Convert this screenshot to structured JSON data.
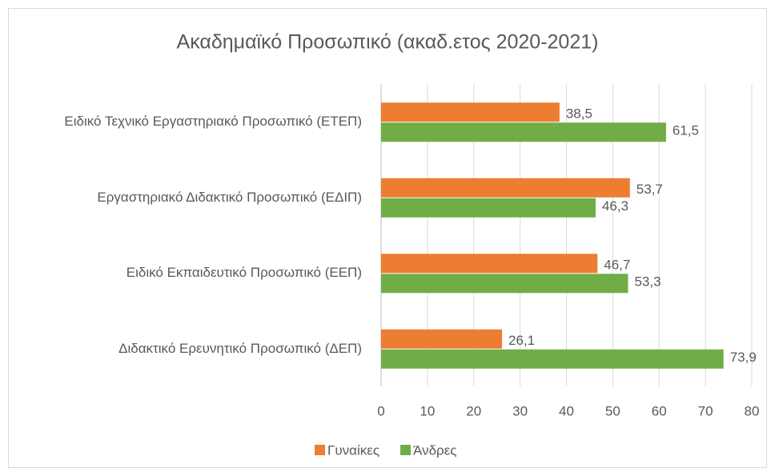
{
  "chart_data": {
    "type": "bar",
    "orientation": "horizontal",
    "title": "Ακαδημαϊκό Προσωπικό (ακαδ.ετος 2020-2021)",
    "categories": [
      "Ειδικό Τεχνικό Εργαστηριακό Προσωπικό (ΕΤΕΠ)",
      "Εργαστηριακό Διδακτικό Προσωπικό (ΕΔΙΠ)",
      "Ειδικό Εκπαιδευτικό Προσωπικό (ΕΕΠ)",
      "Διδακτικό Ερευνητικό Προσωπικό (ΔΕΠ)"
    ],
    "series": [
      {
        "name": "Γυναίκες",
        "color": "#ed7d31",
        "values": [
          38.5,
          53.7,
          46.7,
          26.1
        ],
        "value_labels": [
          "38,5",
          "53,7",
          "46,7",
          "26,1"
        ]
      },
      {
        "name": "Άνδρες",
        "color": "#70ad47",
        "values": [
          61.5,
          46.3,
          53.3,
          73.9
        ],
        "value_labels": [
          "61,5",
          "46,3",
          "53,3",
          "73,9"
        ]
      }
    ],
    "xlim": [
      0,
      80
    ],
    "xticks": [
      0,
      10,
      20,
      30,
      40,
      50,
      60,
      70,
      80
    ],
    "grid": true,
    "legend": "bottom"
  }
}
